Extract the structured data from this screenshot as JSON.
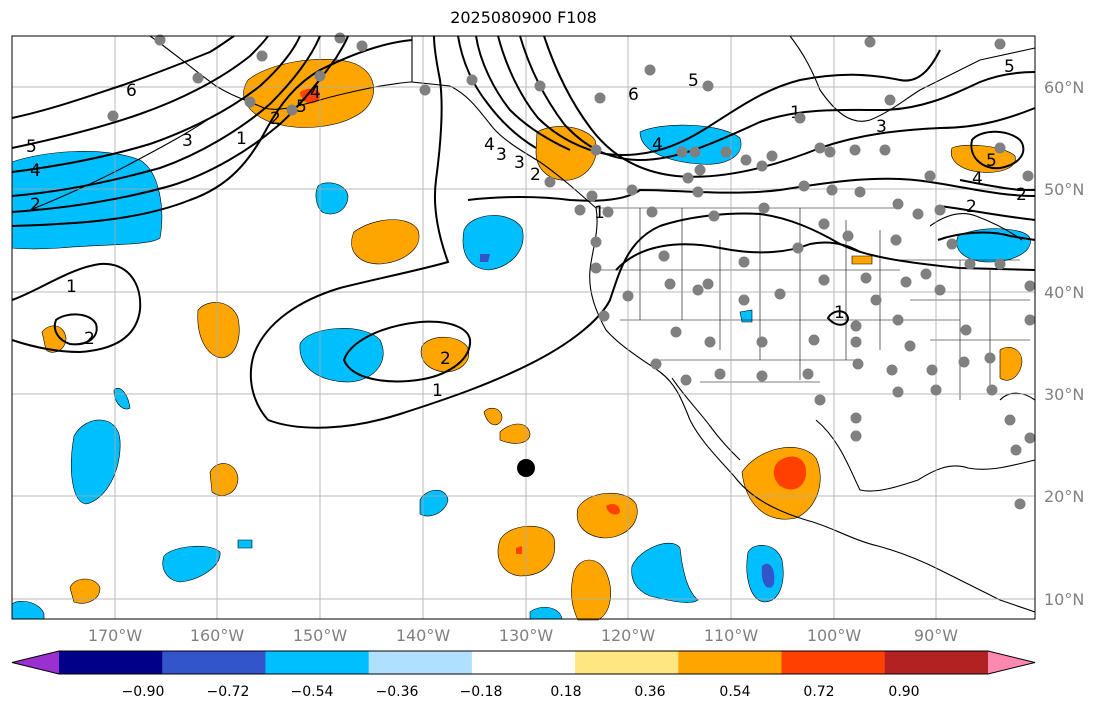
{
  "title": "2025080900 F108",
  "lat_labels": [
    "60°N",
    "50°N",
    "40°N",
    "30°N",
    "20°N",
    "10°N"
  ],
  "lon_labels": [
    "170°W",
    "160°W",
    "150°W",
    "140°W",
    "130°W",
    "120°W",
    "110°W",
    "100°W",
    "90°W"
  ],
  "colorbar": {
    "tick_labels": [
      "−0.90",
      "−0.72",
      "−0.54",
      "−0.36",
      "−0.18",
      "0.18",
      "0.36",
      "0.54",
      "0.72",
      "0.90"
    ],
    "colors": [
      "#9b30d0",
      "#000088",
      "#3355cc",
      "#00bfff",
      "#b0e0ff",
      "#ffffff",
      "#ffe680",
      "#ffa500",
      "#ff4000",
      "#b22222",
      "#ff88b0"
    ]
  },
  "contour_labels": [
    "6",
    "5",
    "4",
    "3",
    "2",
    "1",
    "1",
    "2",
    "2",
    "1",
    "6",
    "5",
    "5",
    "4",
    "3",
    "2",
    "1",
    "4",
    "3",
    "5",
    "4",
    "3",
    "2",
    "1",
    "1",
    "2",
    "5",
    "4",
    "2"
  ],
  "colors": {
    "grid": "#aaaaaa",
    "stations": "#808080",
    "contours": "#000000"
  }
}
